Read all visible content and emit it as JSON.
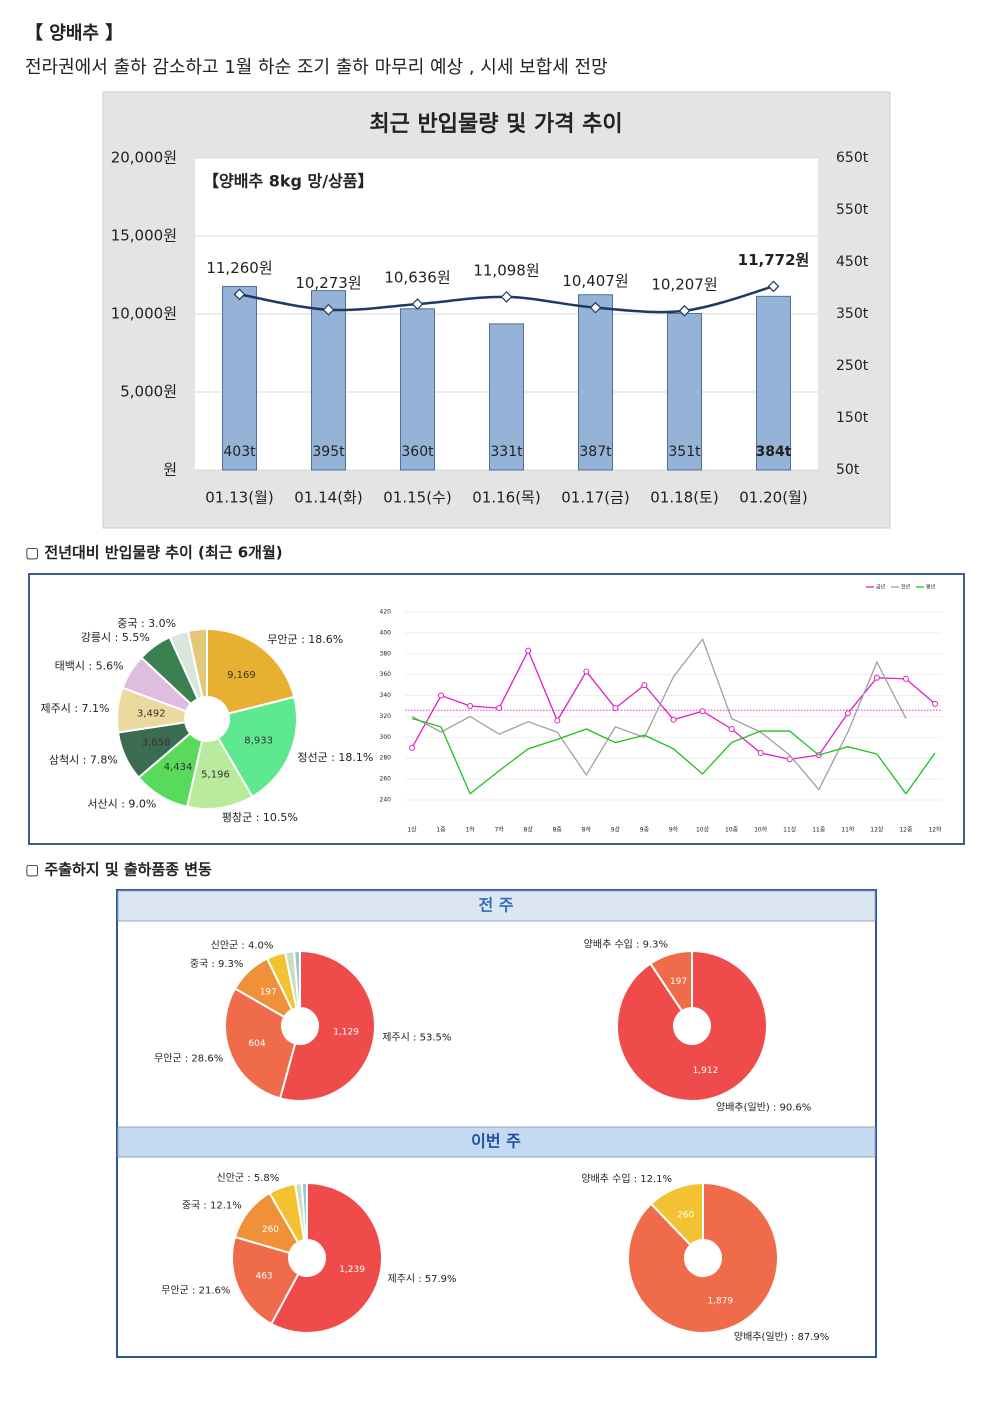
{
  "header": {
    "title": "【 양배추 】",
    "subtitle": "전라권에서 출하 감소하고 1월 하순 조기 출하 마무리 예상 , 시세 보합세 전망"
  },
  "section_headings": [
    "▢ 전년대비 반입물량 추이 (최근 6개월)",
    "▢ 주출하지 및 출하품종 변동"
  ],
  "panels": [
    "전 주",
    "이번 주"
  ],
  "chart_data": [
    {
      "type": "bar",
      "title": "최근 반입물량 및 가격 추이",
      "annotation": "【양배추 8kg 망/상품】",
      "categories": [
        "01.13(월)",
        "01.14(화)",
        "01.15(수)",
        "01.16(목)",
        "01.17(금)",
        "01.18(토)",
        "01.20(월)"
      ],
      "series": [
        {
          "type": "bar",
          "axis": "y2",
          "color": "#95b3d7",
          "values": [
            403,
            395,
            360,
            331,
            387,
            351,
            384
          ],
          "value_labels": [
            "403t",
            "395t",
            "360t",
            "331t",
            "387t",
            "351t",
            "384t"
          ]
        },
        {
          "type": "line",
          "color": "#1f3864",
          "values": [
            11260,
            10273,
            10636,
            11098,
            10407,
            10207,
            11772
          ],
          "value_labels": [
            "11,260원",
            "10,273원",
            "10,636원",
            "11,098원",
            "10,407원",
            "10,207원",
            "11,772원"
          ]
        }
      ],
      "ylim": [
        0,
        20000
      ],
      "yticks": [
        {
          "value": 0,
          "label": "원"
        },
        {
          "value": 5000,
          "label": "5,000원"
        },
        {
          "value": 10000,
          "label": "10,000원"
        },
        {
          "value": 15000,
          "label": "15,000원"
        },
        {
          "value": 20000,
          "label": "20,000원"
        }
      ],
      "y2lim": [
        50,
        650
      ],
      "y2ticks": [
        {
          "value": 50,
          "label": "50t"
        },
        {
          "value": 150,
          "label": "150t"
        },
        {
          "value": 250,
          "label": "250t"
        },
        {
          "value": 350,
          "label": "350t"
        },
        {
          "value": 450,
          "label": "450t"
        },
        {
          "value": 550,
          "label": "550t"
        },
        {
          "value": 650,
          "label": "650t"
        }
      ],
      "grid": true
    },
    {
      "type": "pie",
      "donut": true,
      "labels": [
        "무안군 : 18.6%",
        "정선군 : 18.1%",
        "평창군 : 10.5%",
        "서산시 : 9.0%",
        "삼척시 : 7.8%",
        "제주시 : 7.1%",
        "태백시 : 5.6%",
        "강릉시 : 5.5%",
        "중국 : 3.0%",
        null
      ],
      "values": [
        9169,
        8933,
        5196,
        4434,
        3858,
        3492,
        2761,
        2711,
        1479,
        1479
      ],
      "value_labels": [
        "9,169",
        "8,933",
        "5,196",
        "4,434",
        "3,858",
        "3,492",
        null,
        null,
        null,
        null
      ],
      "colors": [
        "#e8b030",
        "#5ee890",
        "#b8eb9c",
        "#5ada5a",
        "#3b6b50",
        "#ecd9a0",
        "#e0bde0",
        "#3a8050",
        "#d8e6e0",
        "#e3c87a"
      ]
    },
    {
      "type": "line",
      "categories": [
        "1상",
        "1중",
        "1하",
        "7하",
        "8상",
        "8중",
        "8하",
        "9상",
        "9중",
        "9하",
        "10상",
        "10중",
        "10하",
        "11상",
        "11중",
        "11하",
        "12상",
        "12중",
        "12하"
      ],
      "series": [
        {
          "name": "금년",
          "color": "#e020c0",
          "values": [
            290,
            340,
            330,
            328,
            383,
            316,
            363,
            328,
            350,
            317,
            325,
            308,
            285,
            279,
            283,
            323,
            357,
            356,
            332
          ]
        },
        {
          "name": "전년",
          "color": "#a0a0a0",
          "values": [
            320,
            305,
            320,
            303,
            315,
            305,
            264,
            310,
            300,
            358,
            394,
            318,
            305,
            283,
            250,
            305,
            372,
            318,
            null
          ]
        },
        {
          "name": "평년",
          "color": "#20c020",
          "values": [
            318,
            310,
            246,
            268,
            289,
            298,
            308,
            295,
            302,
            289,
            265,
            295,
            306,
            306,
            283,
            291,
            284,
            246,
            285
          ]
        }
      ],
      "reference_line": 326,
      "ylim": [
        240,
        420
      ],
      "yticks": [
        240,
        260,
        280,
        300,
        320,
        340,
        360,
        380,
        400,
        420
      ],
      "legend": "top-right",
      "grid": true
    },
    {
      "type": "pie",
      "donut": true,
      "labels": [
        "제주시 : 53.5%",
        "무안군 : 28.6%",
        "중국 : 9.3%",
        "신안군 : 4.0%",
        null,
        null
      ],
      "values": [
        1129,
        604,
        197,
        84,
        40,
        26
      ],
      "value_labels": [
        "1,129",
        "604",
        "197",
        null,
        null,
        null
      ],
      "colors": [
        "#ef4b4b",
        "#f06b4a",
        "#f0913a",
        "#f2c232",
        "#c8e0c0",
        "#9cc8c8"
      ]
    },
    {
      "type": "pie",
      "donut": true,
      "labels": [
        "양배추(일반) : 90.6%",
        "양배추 수입 : 9.3%"
      ],
      "values": [
        1912,
        197
      ],
      "value_labels": [
        "1,912",
        "197"
      ],
      "colors": [
        "#ef4b4b",
        "#f06b4a"
      ]
    },
    {
      "type": "pie",
      "donut": true,
      "labels": [
        "제주시 : 57.9%",
        "무안군 : 21.6%",
        "중국 : 12.1%",
        "신안군 : 5.8%",
        null,
        null
      ],
      "values": [
        1239,
        463,
        260,
        124,
        30,
        24
      ],
      "value_labels": [
        "1,239",
        "463",
        "260",
        null,
        null,
        null
      ],
      "colors": [
        "#ef4b4b",
        "#f06b4a",
        "#f0913a",
        "#f2c232",
        "#c8e0c0",
        "#9cc8c8"
      ]
    },
    {
      "type": "pie",
      "donut": true,
      "labels": [
        "양배추(일반) : 87.9%",
        "양배추 수입 : 12.1%"
      ],
      "values": [
        1879,
        260
      ],
      "value_labels": [
        "1,879",
        "260"
      ],
      "colors": [
        "#f06b4a",
        "#f2c232"
      ]
    }
  ]
}
